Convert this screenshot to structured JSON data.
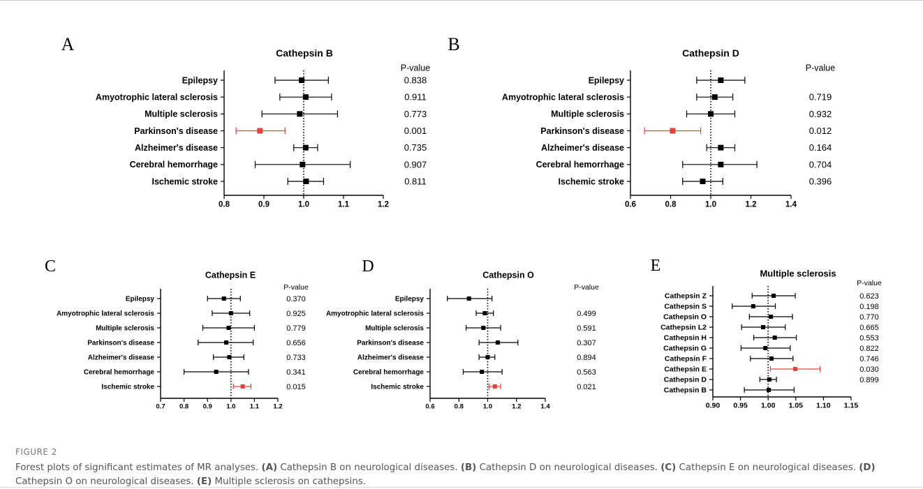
{
  "figure": {
    "label": "FIGURE 2",
    "caption": [
      {
        "text": "Forest plots of significant estimates of MR analyses. ",
        "bold": false
      },
      {
        "text": "(A)",
        "bold": true
      },
      {
        "text": " Cathepsin B on neurological diseases. ",
        "bold": false
      },
      {
        "text": "(B)",
        "bold": true
      },
      {
        "text": " Cathepsin D on neurological diseases. ",
        "bold": false
      },
      {
        "text": "(C)",
        "bold": true
      },
      {
        "text": " Cathepsin E on neurological diseases. ",
        "bold": false
      },
      {
        "text": "(D)",
        "bold": true
      },
      {
        "text": " Cathepsin O on neurological diseases. ",
        "bold": false
      },
      {
        "text": "(E)",
        "bold": true
      },
      {
        "text": " Multiple sclerosis on cathepsins.",
        "bold": false
      }
    ]
  },
  "colors": {
    "significant": "#e8413c",
    "normal": "#000000",
    "caption_text": "#555555",
    "label_text": "#777777"
  },
  "chart_data": [
    {
      "panel": "A",
      "type": "forest",
      "title": "Cathepsin B",
      "pvalue_header": "P-value",
      "xlim": [
        0.8,
        1.2
      ],
      "xticks": [
        0.8,
        0.9,
        1.0,
        1.1,
        1.2
      ],
      "ref_line": 1.0,
      "rows": [
        {
          "label": "Epilepsy",
          "or": 0.995,
          "lo": 0.928,
          "hi": 1.062,
          "p": "0.838",
          "sig": false
        },
        {
          "label": "Amyotrophic lateral sclerosis",
          "or": 1.005,
          "lo": 0.94,
          "hi": 1.07,
          "p": "0.911",
          "sig": false
        },
        {
          "label": "Multiple sclerosis",
          "or": 0.99,
          "lo": 0.895,
          "hi": 1.085,
          "p": "0.773",
          "sig": false
        },
        {
          "label": "Parkinson's disease",
          "or": 0.89,
          "lo": 0.83,
          "hi": 0.953,
          "p": "0.001",
          "sig": true
        },
        {
          "label": "Alzheimer's disease",
          "or": 1.005,
          "lo": 0.975,
          "hi": 1.035,
          "p": "0.735",
          "sig": false
        },
        {
          "label": "Cerebral hemorrhage",
          "or": 0.997,
          "lo": 0.878,
          "hi": 1.117,
          "p": "0.907",
          "sig": false
        },
        {
          "label": "Ischemic stroke",
          "or": 1.006,
          "lo": 0.96,
          "hi": 1.05,
          "p": "0.811",
          "sig": false
        }
      ]
    },
    {
      "panel": "B",
      "type": "forest",
      "title": "Cathepsin D",
      "pvalue_header": "P-value",
      "xlim": [
        0.6,
        1.4
      ],
      "xticks": [
        0.6,
        0.8,
        1.0,
        1.2,
        1.4
      ],
      "ref_line": 1.0,
      "rows": [
        {
          "label": "Epilepsy",
          "or": 1.05,
          "lo": 0.93,
          "hi": 1.17,
          "p": "",
          "sig": false
        },
        {
          "label": "Amyotrophic lateral sclerosis",
          "or": 1.02,
          "lo": 0.93,
          "hi": 1.11,
          "p": "0.719",
          "sig": false
        },
        {
          "label": "Multiple sclerosis",
          "or": 1.0,
          "lo": 0.88,
          "hi": 1.12,
          "p": "0.932",
          "sig": false
        },
        {
          "label": "Parkinson's disease",
          "or": 0.81,
          "lo": 0.67,
          "hi": 0.95,
          "p": "0.012",
          "sig": true
        },
        {
          "label": "Alzheimer's disease",
          "or": 1.05,
          "lo": 0.98,
          "hi": 1.12,
          "p": "0.164",
          "sig": false
        },
        {
          "label": "Cerebral hemorrhage",
          "or": 1.05,
          "lo": 0.86,
          "hi": 1.23,
          "p": "0.704",
          "sig": false
        },
        {
          "label": "Ischemic stroke",
          "or": 0.96,
          "lo": 0.86,
          "hi": 1.06,
          "p": "0.396",
          "sig": false
        }
      ]
    },
    {
      "panel": "C",
      "type": "forest",
      "title": "Cathepsin E",
      "pvalue_header": "P-value",
      "xlim": [
        0.7,
        1.2
      ],
      "xticks": [
        0.7,
        0.8,
        0.9,
        1.0,
        1.1,
        1.2
      ],
      "ref_line": 1.0,
      "rows": [
        {
          "label": "Epilepsy",
          "or": 0.97,
          "lo": 0.9,
          "hi": 1.04,
          "p": "0.370",
          "sig": false
        },
        {
          "label": "Amyotrophic lateral sclerosis",
          "or": 1.0,
          "lo": 0.92,
          "hi": 1.08,
          "p": "0.925",
          "sig": false
        },
        {
          "label": "Multiple sclerosis",
          "or": 0.99,
          "lo": 0.88,
          "hi": 1.1,
          "p": "0.779",
          "sig": false
        },
        {
          "label": "Parkinson's disease",
          "or": 0.98,
          "lo": 0.86,
          "hi": 1.095,
          "p": "0.656",
          "sig": false
        },
        {
          "label": "Alzheimer's disease",
          "or": 0.993,
          "lo": 0.925,
          "hi": 1.055,
          "p": "0.733",
          "sig": false
        },
        {
          "label": "Cerebral hemorrhage",
          "or": 0.937,
          "lo": 0.8,
          "hi": 1.075,
          "p": "0.341",
          "sig": false
        },
        {
          "label": "Ischemic stroke",
          "or": 1.05,
          "lo": 1.01,
          "hi": 1.085,
          "p": "0.015",
          "sig": true
        }
      ]
    },
    {
      "panel": "D",
      "type": "forest",
      "title": "Cathepsin O",
      "pvalue_header": "P-value",
      "xlim": [
        0.6,
        1.4
      ],
      "xticks": [
        0.6,
        0.8,
        1.0,
        1.2,
        1.4
      ],
      "ref_line": 1.0,
      "rows": [
        {
          "label": "Epilepsy",
          "or": 0.87,
          "lo": 0.72,
          "hi": 1.03,
          "p": "",
          "sig": false
        },
        {
          "label": "Amyotrophic lateral sclerosis",
          "or": 0.98,
          "lo": 0.92,
          "hi": 1.04,
          "p": "0.499",
          "sig": false
        },
        {
          "label": "Multiple sclerosis",
          "or": 0.97,
          "lo": 0.85,
          "hi": 1.09,
          "p": "0.591",
          "sig": false
        },
        {
          "label": "Parkinson's disease",
          "or": 1.07,
          "lo": 0.94,
          "hi": 1.21,
          "p": "0.307",
          "sig": false
        },
        {
          "label": "Alzheimer's disease",
          "or": 1.0,
          "lo": 0.94,
          "hi": 1.05,
          "p": "0.894",
          "sig": false
        },
        {
          "label": "Cerebral hemorrhage",
          "or": 0.96,
          "lo": 0.83,
          "hi": 1.1,
          "p": "0.563",
          "sig": false
        },
        {
          "label": "Ischemic stroke",
          "or": 1.05,
          "lo": 1.01,
          "hi": 1.09,
          "p": "0.021",
          "sig": true
        }
      ]
    },
    {
      "panel": "E",
      "type": "forest",
      "title": "Multiple sclerosis",
      "pvalue_header": "P-value",
      "xlim": [
        0.9,
        1.15
      ],
      "xticks": [
        0.9,
        0.95,
        1.0,
        1.05,
        1.1,
        1.15
      ],
      "tick_decimals": 2,
      "ref_line": 1.0,
      "rows": [
        {
          "label": "Cathepsin Z",
          "or": 1.01,
          "lo": 0.971,
          "hi": 1.049,
          "p": "0.623",
          "sig": false
        },
        {
          "label": "Cathepsin S",
          "or": 0.973,
          "lo": 0.935,
          "hi": 1.013,
          "p": "0.198",
          "sig": false
        },
        {
          "label": "Cathepsin O",
          "or": 1.005,
          "lo": 0.966,
          "hi": 1.044,
          "p": "0.770",
          "sig": false
        },
        {
          "label": "Cathepsin L2",
          "or": 0.991,
          "lo": 0.952,
          "hi": 1.031,
          "p": "0.665",
          "sig": false
        },
        {
          "label": "Cathepsin H",
          "or": 1.012,
          "lo": 0.974,
          "hi": 1.051,
          "p": "0.553",
          "sig": false
        },
        {
          "label": "Cathepsin G",
          "or": 0.995,
          "lo": 0.951,
          "hi": 1.04,
          "p": "0.822",
          "sig": false
        },
        {
          "label": "Cathepsin F",
          "or": 1.006,
          "lo": 0.968,
          "hi": 1.045,
          "p": "0.746",
          "sig": false
        },
        {
          "label": "Cathepsin E",
          "or": 1.049,
          "lo": 1.004,
          "hi": 1.094,
          "p": "0.030",
          "sig": true
        },
        {
          "label": "Cathepsin D",
          "or": 1.002,
          "lo": 0.985,
          "hi": 1.015,
          "p": "0.899",
          "sig": false
        },
        {
          "label": "Cathepsin B",
          "or": 1.001,
          "lo": 0.957,
          "hi": 1.047,
          "p": "",
          "sig": false
        }
      ]
    }
  ]
}
